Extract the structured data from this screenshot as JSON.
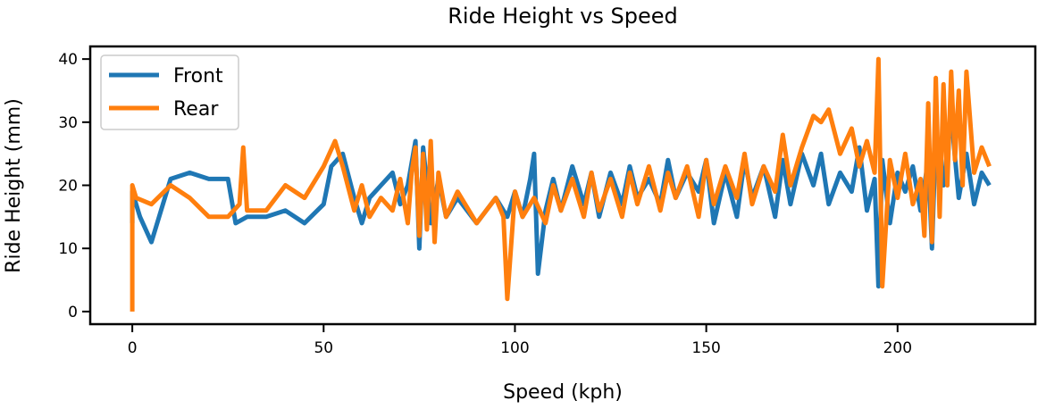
{
  "chart_data": {
    "type": "line",
    "title": "Ride Height vs Speed",
    "xlabel": "Speed (kph)",
    "ylabel": "Ride Height (mm)",
    "xlim": [
      -11,
      236
    ],
    "ylim": [
      -2,
      42
    ],
    "xticks": [
      0,
      50,
      100,
      150,
      200
    ],
    "yticks": [
      0,
      10,
      20,
      30,
      40
    ],
    "grid": false,
    "legend": "top-left",
    "colors": {
      "Front": "#1f77b4",
      "Rear": "#ff7f0e"
    },
    "series": [
      {
        "name": "Front",
        "x": [
          0,
          0,
          2,
          5,
          10,
          15,
          20,
          25,
          27,
          30,
          35,
          40,
          45,
          50,
          52,
          55,
          58,
          60,
          62,
          65,
          68,
          70,
          72,
          74,
          75,
          76,
          78,
          80,
          82,
          85,
          90,
          95,
          98,
          100,
          102,
          104,
          105,
          106,
          108,
          110,
          112,
          115,
          118,
          120,
          122,
          125,
          128,
          130,
          132,
          135,
          138,
          140,
          142,
          145,
          148,
          150,
          152,
          155,
          158,
          160,
          162,
          165,
          168,
          170,
          172,
          175,
          178,
          180,
          182,
          185,
          188,
          190,
          192,
          194,
          195,
          196,
          198,
          200,
          202,
          204,
          206,
          208,
          209,
          210,
          212,
          214,
          216,
          218,
          220,
          222,
          224
        ],
        "y": [
          14,
          19,
          15,
          11,
          21,
          22,
          21,
          21,
          14,
          15,
          15,
          16,
          14,
          17,
          23,
          25,
          18,
          14,
          18,
          20,
          22,
          17,
          20,
          27,
          10,
          26,
          14,
          21,
          15,
          18,
          14,
          18,
          15,
          19,
          15,
          21,
          25,
          6,
          16,
          21,
          16,
          23,
          17,
          22,
          15,
          22,
          17,
          23,
          18,
          21,
          17,
          24,
          18,
          22,
          19,
          24,
          14,
          22,
          15,
          24,
          18,
          23,
          15,
          24,
          17,
          25,
          20,
          25,
          17,
          22,
          19,
          26,
          16,
          21,
          4,
          24,
          14,
          22,
          19,
          23,
          16,
          24,
          10,
          28,
          20,
          31,
          18,
          25,
          17,
          22,
          20
        ]
      },
      {
        "name": "Rear",
        "x": [
          0,
          0,
          1,
          5,
          10,
          15,
          20,
          25,
          28,
          29,
          30,
          35,
          40,
          45,
          50,
          53,
          55,
          58,
          60,
          62,
          65,
          68,
          70,
          72,
          73,
          74,
          75,
          76,
          77,
          78,
          79,
          80,
          82,
          85,
          90,
          95,
          97,
          98,
          100,
          102,
          105,
          108,
          110,
          112,
          115,
          118,
          120,
          122,
          125,
          128,
          130,
          132,
          135,
          138,
          140,
          142,
          145,
          148,
          150,
          152,
          155,
          158,
          160,
          162,
          165,
          168,
          170,
          172,
          175,
          178,
          180,
          182,
          185,
          188,
          190,
          192,
          194,
          195,
          196,
          198,
          200,
          202,
          204,
          206,
          207,
          208,
          209,
          210,
          211,
          212,
          213,
          214,
          215,
          216,
          217,
          218,
          220,
          222,
          224
        ],
        "y": [
          0,
          20,
          18,
          17,
          20,
          18,
          15,
          15,
          17,
          26,
          16,
          16,
          20,
          18,
          23,
          27,
          23,
          16,
          20,
          15,
          18,
          16,
          21,
          14,
          22,
          26,
          12,
          25,
          13,
          27,
          11,
          22,
          15,
          19,
          14,
          18,
          15,
          2,
          19,
          15,
          18,
          14,
          20,
          16,
          21,
          15,
          22,
          16,
          21,
          15,
          22,
          17,
          23,
          16,
          22,
          18,
          23,
          15,
          24,
          17,
          23,
          18,
          25,
          17,
          23,
          19,
          28,
          20,
          26,
          31,
          30,
          32,
          25,
          29,
          23,
          27,
          22,
          40,
          4,
          24,
          18,
          25,
          17,
          21,
          12,
          33,
          11,
          37,
          15,
          36,
          20,
          38,
          24,
          35,
          20,
          38,
          22,
          26,
          23
        ]
      }
    ]
  }
}
